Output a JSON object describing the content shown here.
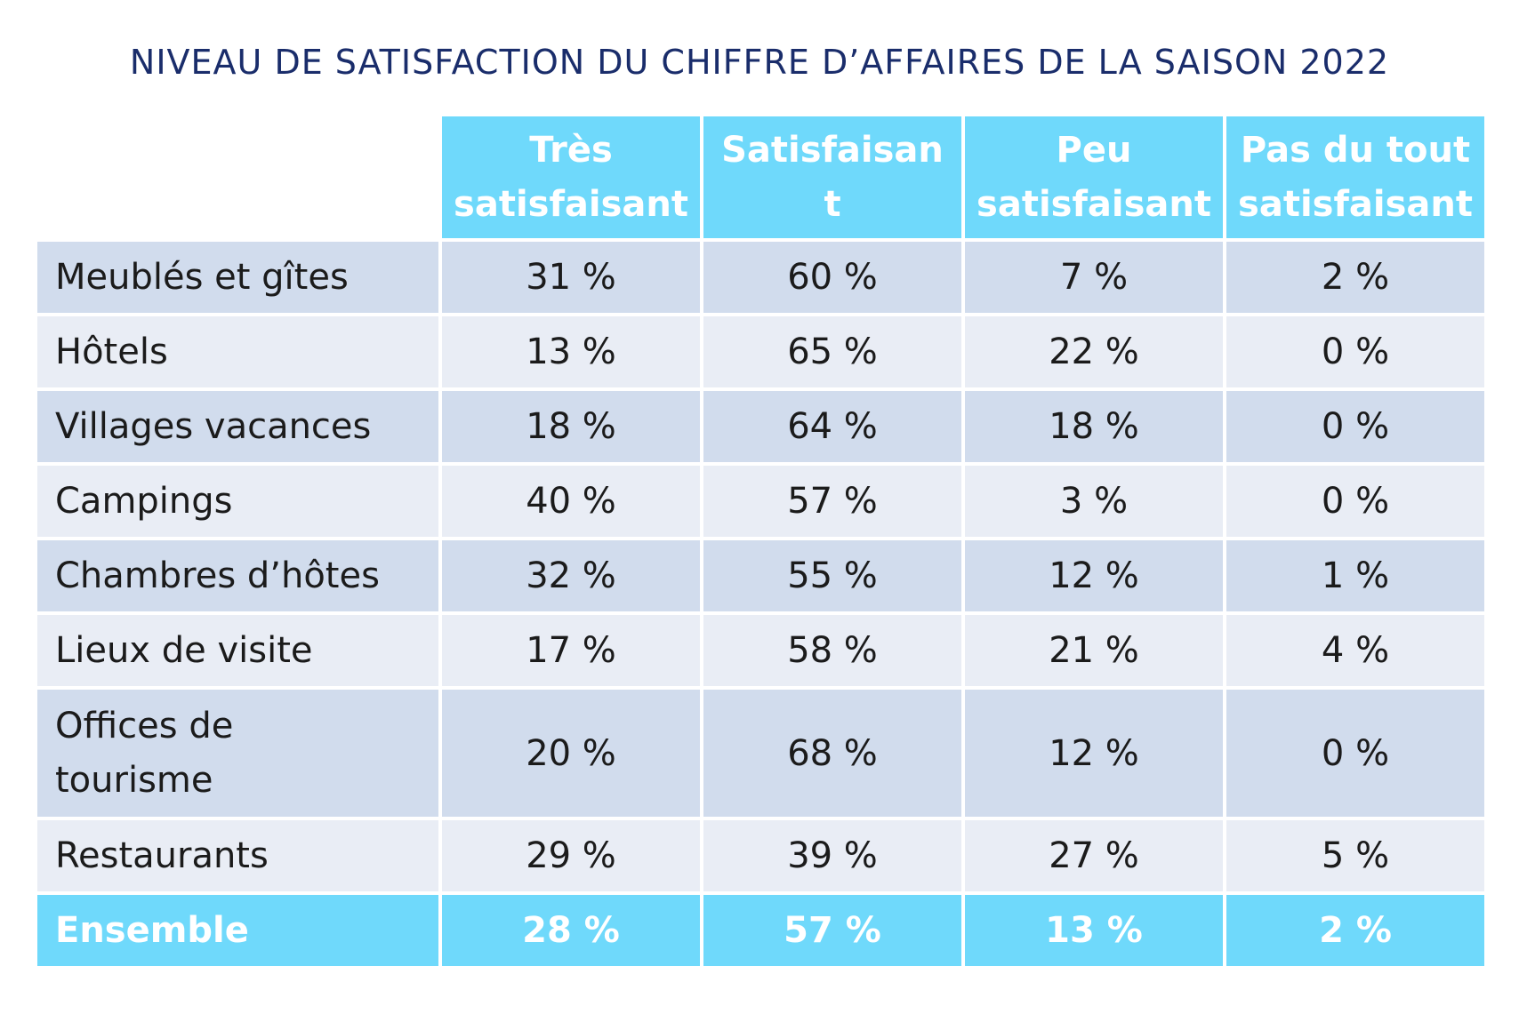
{
  "chart_data": {
    "type": "table",
    "title": "NIVEAU DE SATISFACTION DU CHIFFRE D’AFFAIRES DE LA SAISON 2022",
    "columns": [
      [
        "Très",
        "satisfaisant"
      ],
      [
        "Satisfaisan",
        "t"
      ],
      [
        "Peu",
        "satisfaisant"
      ],
      [
        "Pas du tout",
        "satisfaisant"
      ]
    ],
    "rows": [
      {
        "label": [
          "Meublés et gîtes"
        ],
        "values": [
          "31 %",
          "60 %",
          "7 %",
          "2 %"
        ]
      },
      {
        "label": [
          "Hôtels"
        ],
        "values": [
          "13 %",
          "65 %",
          "22 %",
          "0 %"
        ]
      },
      {
        "label": [
          "Villages vacances"
        ],
        "values": [
          "18 %",
          "64 %",
          "18 %",
          "0 %"
        ]
      },
      {
        "label": [
          "Campings"
        ],
        "values": [
          "40 %",
          "57 %",
          "3 %",
          "0 %"
        ]
      },
      {
        "label": [
          "Chambres d’hôtes"
        ],
        "values": [
          "32 %",
          "55 %",
          "12 %",
          "1 %"
        ]
      },
      {
        "label": [
          "Lieux de visite"
        ],
        "values": [
          "17 %",
          "58 %",
          "21 %",
          "4 %"
        ]
      },
      {
        "label": [
          "Offices de",
          "tourisme"
        ],
        "values": [
          "20 %",
          "68 %",
          "12 %",
          "0 %"
        ]
      },
      {
        "label": [
          "Restaurants"
        ],
        "values": [
          "29 %",
          "39 %",
          "27 %",
          "5 %"
        ]
      }
    ],
    "total": {
      "label": "Ensemble",
      "values": [
        "28 %",
        "57 %",
        "13 %",
        "2 %"
      ]
    },
    "colors": {
      "header": "#6fd9fb",
      "row_dark": "#d1dced",
      "row_light": "#e9edf5",
      "title": "#1a2d6b"
    }
  }
}
